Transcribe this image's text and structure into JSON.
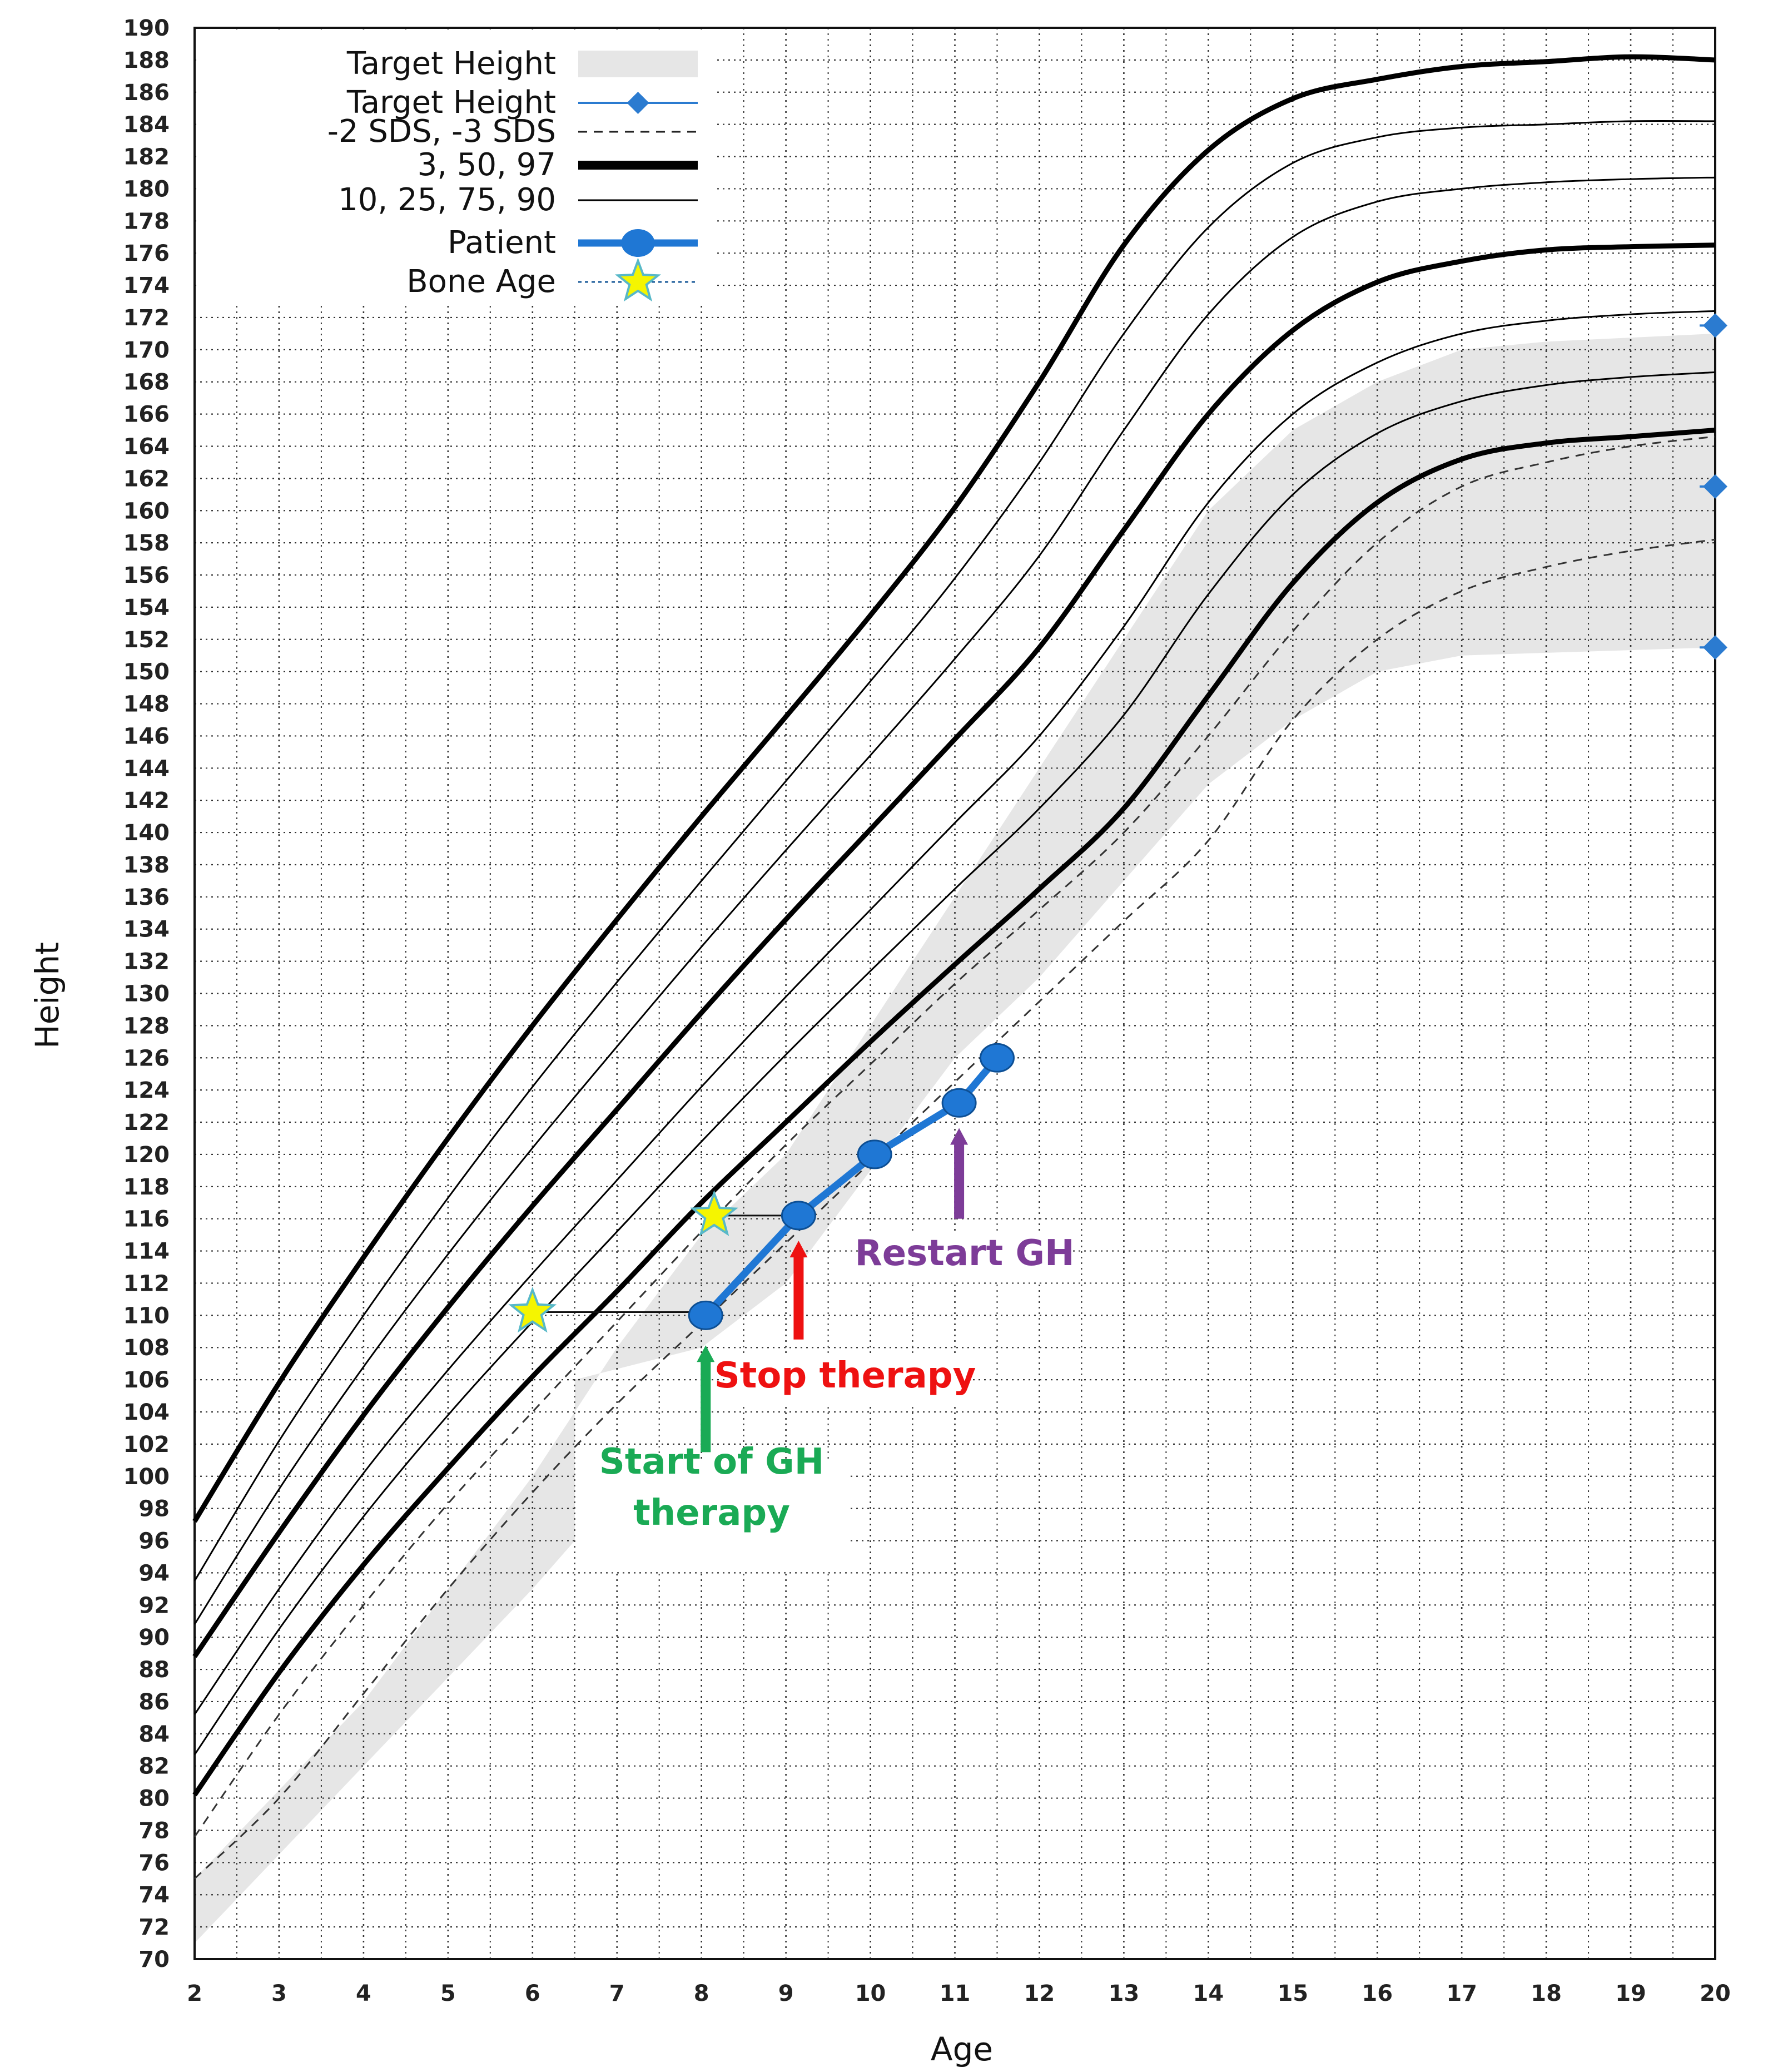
{
  "chart_data": {
    "type": "line",
    "title": "",
    "xlabel": "Age",
    "ylabel": "Height",
    "xlim": [
      2,
      20
    ],
    "ylim": [
      70,
      190
    ],
    "x_ticks": [
      2,
      3,
      4,
      5,
      6,
      7,
      8,
      9,
      10,
      11,
      12,
      13,
      14,
      15,
      16,
      17,
      18,
      19,
      20
    ],
    "y_ticks": [
      70,
      72,
      74,
      76,
      78,
      80,
      82,
      84,
      86,
      88,
      90,
      92,
      94,
      96,
      98,
      100,
      102,
      104,
      106,
      108,
      110,
      112,
      114,
      116,
      118,
      120,
      122,
      124,
      126,
      128,
      130,
      132,
      134,
      136,
      138,
      140,
      142,
      144,
      146,
      148,
      150,
      152,
      154,
      156,
      158,
      160,
      162,
      164,
      166,
      168,
      170,
      172,
      174,
      176,
      178,
      180,
      182,
      184,
      186,
      188,
      190
    ],
    "grid": true,
    "grid_style": "dotted",
    "legend_position": "top-left",
    "legend": [
      {
        "label": "Target Height",
        "kind": "band",
        "color": "#e6e6e6"
      },
      {
        "label": "Target Height",
        "kind": "line-marker",
        "color": "#2b7bd0"
      },
      {
        "label": "-2 SDS, -3 SDS",
        "kind": "dashed",
        "color": "#222222"
      },
      {
        "label": "3, 50, 97",
        "kind": "thick",
        "color": "#000000"
      },
      {
        "label": "10, 25, 75, 90",
        "kind": "thin",
        "color": "#000000"
      },
      {
        "label": "Patient",
        "kind": "patient",
        "color": "#1f77d4"
      },
      {
        "label": "Bone Age",
        "kind": "star",
        "color": "#f5f500"
      }
    ],
    "target_height_band": {
      "upper": [
        [
          2,
          75
        ],
        [
          4,
          86
        ],
        [
          6,
          100
        ],
        [
          7,
          108
        ],
        [
          8,
          115
        ],
        [
          9,
          120
        ],
        [
          10,
          128
        ],
        [
          11,
          136
        ],
        [
          12,
          144
        ],
        [
          13,
          152
        ],
        [
          14,
          160
        ],
        [
          15,
          165
        ],
        [
          16,
          168
        ],
        [
          17,
          170
        ],
        [
          18,
          170.5
        ],
        [
          20,
          171
        ]
      ],
      "lower": [
        [
          2,
          71
        ],
        [
          4,
          82
        ],
        [
          6,
          93
        ],
        [
          6.5,
          96
        ],
        [
          6.5,
          106
        ],
        [
          8,
          108
        ],
        [
          9,
          112
        ],
        [
          10,
          119
        ],
        [
          11,
          126
        ],
        [
          12,
          131
        ],
        [
          13,
          137
        ],
        [
          14,
          143
        ],
        [
          15,
          147
        ],
        [
          16,
          150
        ],
        [
          17,
          151
        ],
        [
          20,
          151.5
        ]
      ]
    },
    "target_height_markers": [
      {
        "x": 20,
        "y": 171.5
      },
      {
        "x": 20,
        "y": 161.5
      },
      {
        "x": 20,
        "y": 151.5
      }
    ],
    "series": [
      {
        "name": "3",
        "style": "thick",
        "values": [
          [
            2,
            80.2
          ],
          [
            3,
            87.8
          ],
          [
            4,
            94.5
          ],
          [
            5,
            100.5
          ],
          [
            6,
            106.2
          ],
          [
            7,
            111.5
          ],
          [
            8,
            117
          ],
          [
            9,
            122
          ],
          [
            10,
            127
          ],
          [
            11,
            131.8
          ],
          [
            12,
            136.5
          ],
          [
            13,
            141.5
          ],
          [
            14,
            148.5
          ],
          [
            15,
            155.5
          ],
          [
            16,
            160.5
          ],
          [
            17,
            163.2
          ],
          [
            18,
            164.2
          ],
          [
            19,
            164.6
          ],
          [
            20,
            165
          ]
        ]
      },
      {
        "name": "10",
        "style": "thin",
        "values": [
          [
            2,
            82.7
          ],
          [
            3,
            90.5
          ],
          [
            4,
            97.5
          ],
          [
            5,
            103.8
          ],
          [
            6,
            109.6
          ],
          [
            7,
            115.2
          ],
          [
            8,
            120.8
          ],
          [
            9,
            126.2
          ],
          [
            10,
            131.4
          ],
          [
            11,
            136.5
          ],
          [
            12,
            141.5
          ],
          [
            13,
            147.3
          ],
          [
            14,
            154.8
          ],
          [
            15,
            161
          ],
          [
            16,
            164.8
          ],
          [
            17,
            166.8
          ],
          [
            18,
            167.8
          ],
          [
            19,
            168.3
          ],
          [
            20,
            168.6
          ]
        ]
      },
      {
        "name": "25",
        "style": "thin",
        "values": [
          [
            2,
            85.2
          ],
          [
            3,
            93
          ],
          [
            4,
            100.2
          ],
          [
            5,
            106.6
          ],
          [
            6,
            112.6
          ],
          [
            7,
            118.4
          ],
          [
            8,
            124.2
          ],
          [
            9,
            129.8
          ],
          [
            10,
            135.2
          ],
          [
            11,
            140.6
          ],
          [
            12,
            146
          ],
          [
            13,
            152.8
          ],
          [
            14,
            160.5
          ],
          [
            15,
            166
          ],
          [
            16,
            169.2
          ],
          [
            17,
            171
          ],
          [
            18,
            171.8
          ],
          [
            19,
            172.2
          ],
          [
            20,
            172.4
          ]
        ]
      },
      {
        "name": "50",
        "style": "thick",
        "values": [
          [
            2,
            88.8
          ],
          [
            3,
            96.5
          ],
          [
            4,
            103.8
          ],
          [
            5,
            110.5
          ],
          [
            6,
            116.8
          ],
          [
            7,
            122.8
          ],
          [
            8,
            128.8
          ],
          [
            9,
            134.6
          ],
          [
            10,
            140.2
          ],
          [
            11,
            145.8
          ],
          [
            12,
            151.5
          ],
          [
            13,
            158.8
          ],
          [
            14,
            166
          ],
          [
            15,
            171.2
          ],
          [
            16,
            174.2
          ],
          [
            17,
            175.5
          ],
          [
            18,
            176.2
          ],
          [
            19,
            176.4
          ],
          [
            20,
            176.5
          ]
        ]
      },
      {
        "name": "75",
        "style": "thin",
        "values": [
          [
            2,
            90.8
          ],
          [
            3,
            99.2
          ],
          [
            4,
            106.8
          ],
          [
            5,
            113.8
          ],
          [
            6,
            120.4
          ],
          [
            7,
            126.7
          ],
          [
            8,
            132.9
          ],
          [
            9,
            138.9
          ],
          [
            10,
            144.8
          ],
          [
            11,
            150.8
          ],
          [
            12,
            157.2
          ],
          [
            13,
            165
          ],
          [
            14,
            172.2
          ],
          [
            15,
            177
          ],
          [
            16,
            179.2
          ],
          [
            17,
            180
          ],
          [
            18,
            180.4
          ],
          [
            19,
            180.6
          ],
          [
            20,
            180.7
          ]
        ]
      },
      {
        "name": "90",
        "style": "thin",
        "values": [
          [
            2,
            93.5
          ],
          [
            3,
            102.2
          ],
          [
            4,
            110
          ],
          [
            5,
            117.3
          ],
          [
            6,
            124.2
          ],
          [
            7,
            130.7
          ],
          [
            8,
            137
          ],
          [
            9,
            143.2
          ],
          [
            10,
            149.4
          ],
          [
            11,
            155.8
          ],
          [
            12,
            163
          ],
          [
            13,
            171
          ],
          [
            14,
            177.6
          ],
          [
            15,
            181.6
          ],
          [
            16,
            183.2
          ],
          [
            17,
            183.8
          ],
          [
            18,
            184
          ],
          [
            19,
            184.2
          ],
          [
            20,
            184.2
          ]
        ]
      },
      {
        "name": "97",
        "style": "thick",
        "values": [
          [
            2,
            97.2
          ],
          [
            3,
            105.8
          ],
          [
            4,
            113.6
          ],
          [
            5,
            121
          ],
          [
            6,
            128
          ],
          [
            7,
            134.6
          ],
          [
            8,
            141
          ],
          [
            9,
            147.2
          ],
          [
            10,
            153.5
          ],
          [
            11,
            160.2
          ],
          [
            12,
            168
          ],
          [
            13,
            176.5
          ],
          [
            14,
            182.4
          ],
          [
            15,
            185.6
          ],
          [
            16,
            186.8
          ],
          [
            17,
            187.6
          ],
          [
            18,
            187.9
          ],
          [
            19,
            188.2
          ],
          [
            20,
            188
          ]
        ]
      },
      {
        "name": "-2 SDS",
        "style": "dashed",
        "values": [
          [
            2,
            77.6
          ],
          [
            3,
            85.2
          ],
          [
            4,
            92
          ],
          [
            5,
            98.3
          ],
          [
            6,
            104
          ],
          [
            7,
            109.6
          ],
          [
            8,
            115.2
          ],
          [
            9,
            120.6
          ],
          [
            10,
            125.6
          ],
          [
            11,
            130.6
          ],
          [
            12,
            135.2
          ],
          [
            13,
            140
          ],
          [
            14,
            146
          ],
          [
            15,
            152.5
          ],
          [
            16,
            158
          ],
          [
            17,
            161.5
          ],
          [
            18,
            163
          ],
          [
            19,
            164
          ],
          [
            20,
            164.6
          ]
        ]
      },
      {
        "name": "-3 SDS",
        "style": "dashed",
        "values": [
          [
            2,
            75
          ],
          [
            3,
            80
          ],
          [
            4,
            86.5
          ],
          [
            5,
            93
          ],
          [
            6,
            99
          ],
          [
            7,
            104.5
          ],
          [
            8,
            109.5
          ],
          [
            9,
            114.5
          ],
          [
            10,
            119.5
          ],
          [
            11,
            124.5
          ],
          [
            12,
            129.5
          ],
          [
            13,
            134.5
          ],
          [
            14,
            139.5
          ],
          [
            15,
            147
          ],
          [
            16,
            152
          ],
          [
            17,
            155
          ],
          [
            18,
            156.5
          ],
          [
            19,
            157.5
          ],
          [
            20,
            158.2
          ]
        ]
      },
      {
        "name": "Patient",
        "style": "patient",
        "values": [
          [
            8.05,
            110
          ],
          [
            9.15,
            116.2
          ],
          [
            10.05,
            120
          ],
          [
            11.05,
            123.2
          ],
          [
            11.5,
            126
          ]
        ]
      }
    ],
    "bone_age": [
      {
        "x": 6.0,
        "y": 110.2,
        "line_to_x": 8.05
      },
      {
        "x": 8.15,
        "y": 116.2,
        "line_to_x": 9.15
      }
    ],
    "annotations": [
      {
        "text": "Start of GH\ntherapy",
        "color": "#1aaa55",
        "arrow_x": 8.05,
        "arrow_from_y": 101.5,
        "arrow_to_y": 108
      },
      {
        "text": "Stop therapy",
        "color": "#ee1111",
        "arrow_x": 9.15,
        "arrow_from_y": 108.5,
        "arrow_to_y": 114.5
      },
      {
        "text": "Restart GH",
        "color": "#7d3c98",
        "arrow_x": 11.05,
        "arrow_from_y": 116,
        "arrow_to_y": 121.5
      }
    ]
  },
  "colors": {
    "background": "#ffffff",
    "grid": "#333333",
    "band": "#e6e6e6",
    "patient": "#1f77d4",
    "target_marker": "#2b7bd0",
    "star_fill": "#f5f500",
    "star_stroke": "#58b8c8"
  }
}
